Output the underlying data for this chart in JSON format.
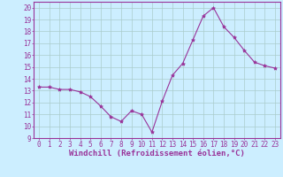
{
  "x": [
    0,
    1,
    2,
    3,
    4,
    5,
    6,
    7,
    8,
    9,
    10,
    11,
    12,
    13,
    14,
    15,
    16,
    17,
    18,
    19,
    20,
    21,
    22,
    23
  ],
  "y": [
    13.3,
    13.3,
    13.1,
    13.1,
    12.9,
    12.5,
    11.7,
    10.8,
    10.4,
    11.3,
    11.0,
    9.5,
    12.1,
    14.3,
    15.3,
    17.3,
    19.3,
    20.0,
    18.4,
    17.5,
    16.4,
    15.4,
    15.1,
    14.9
  ],
  "line_color": "#993399",
  "marker": "*",
  "marker_size": 3,
  "bg_color": "#cceeff",
  "grid_color": "#aacccc",
  "xlabel": "Windchill (Refroidissement éolien,°C)",
  "xlim": [
    -0.5,
    23.5
  ],
  "ylim": [
    9,
    20.5
  ],
  "yticks": [
    9,
    10,
    11,
    12,
    13,
    14,
    15,
    16,
    17,
    18,
    19,
    20
  ],
  "xticks": [
    0,
    1,
    2,
    3,
    4,
    5,
    6,
    7,
    8,
    9,
    10,
    11,
    12,
    13,
    14,
    15,
    16,
    17,
    18,
    19,
    20,
    21,
    22,
    23
  ],
  "tick_color": "#993399",
  "label_color": "#993399",
  "axis_color": "#993399",
  "font_size": 5.5,
  "xlabel_fontsize": 6.5
}
